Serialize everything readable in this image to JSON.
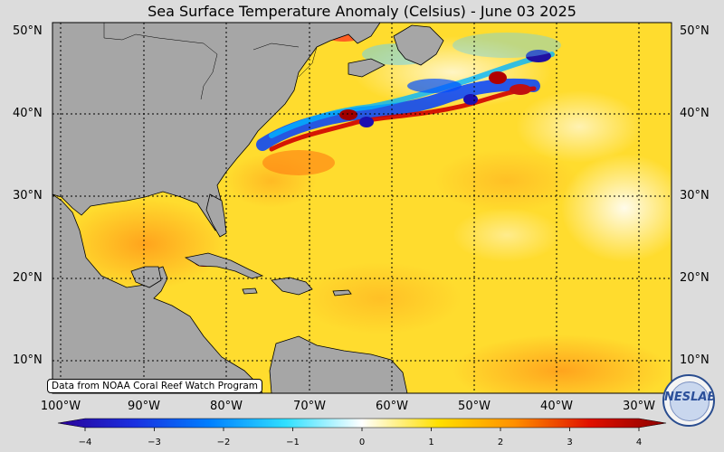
{
  "title": "Sea Surface Temperature Anomaly (Celsius) - June 03 2025",
  "lat_labels": [
    "50°N",
    "40°N",
    "30°N",
    "20°N",
    "10°N"
  ],
  "lon_labels": [
    "100°W",
    "90°W",
    "80°W",
    "70°W",
    "60°W",
    "50°W",
    "40°W",
    "30°W"
  ],
  "source_note": "Data from NOAA Coral Reef Watch Program",
  "logo": {
    "text": "NESLAB",
    "icon": "neslab-logo"
  },
  "colorbar": {
    "ticks": [
      "−4",
      "−3",
      "−2",
      "−1",
      "0",
      "1",
      "2",
      "3",
      "4"
    ],
    "range": [
      -4,
      4
    ],
    "colors": [
      "#2a0098",
      "#0050ff",
      "#00c8ff",
      "#ffffff",
      "#ffe000",
      "#ff8000",
      "#e00000",
      "#8b0000"
    ]
  },
  "colors": {
    "land": "#a6a6a6",
    "warm_ocean": "#ffd21e",
    "cold_anomaly": "#0030e0",
    "hot_anomaly": "#c00000"
  }
}
